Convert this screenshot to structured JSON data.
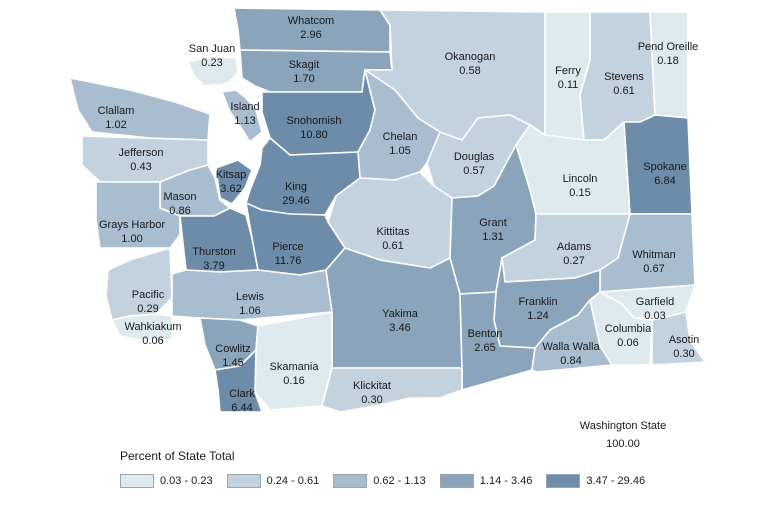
{
  "bins": [
    {
      "label": "0.03 - 0.23",
      "color": "#dfeaef"
    },
    {
      "label": "0.24 - 0.61",
      "color": "#c3d2df"
    },
    {
      "label": "0.62 - 1.13",
      "color": "#a8bdcf"
    },
    {
      "label": "1.14 - 3.46",
      "color": "#8aa4bb"
    },
    {
      "label": "3.47 - 29.46",
      "color": "#6c8ca9"
    }
  ],
  "legend": {
    "title": "Percent of State Total"
  },
  "state_total": {
    "name": "Washington State",
    "value": "100.00"
  },
  "counties": [
    {
      "name": "Whatcom",
      "value": "2.96",
      "bin": 3
    },
    {
      "name": "San Juan",
      "value": "0.23",
      "bin": 0
    },
    {
      "name": "Skagit",
      "value": "1.70",
      "bin": 3
    },
    {
      "name": "Okanogan",
      "value": "0.58",
      "bin": 1
    },
    {
      "name": "Ferry",
      "value": "0.11",
      "bin": 0
    },
    {
      "name": "Stevens",
      "value": "0.61",
      "bin": 1
    },
    {
      "name": "Pend Oreille",
      "value": "0.18",
      "bin": 0
    },
    {
      "name": "Clallam",
      "value": "1.02",
      "bin": 2
    },
    {
      "name": "Island",
      "value": "1.13",
      "bin": 2
    },
    {
      "name": "Snohomish",
      "value": "10.80",
      "bin": 4
    },
    {
      "name": "Chelan",
      "value": "1.05",
      "bin": 2
    },
    {
      "name": "Jefferson",
      "value": "0.43",
      "bin": 1
    },
    {
      "name": "Douglas",
      "value": "0.57",
      "bin": 1
    },
    {
      "name": "Lincoln",
      "value": "0.15",
      "bin": 0
    },
    {
      "name": "Spokane",
      "value": "6.84",
      "bin": 4
    },
    {
      "name": "Kitsap",
      "value": "3.62",
      "bin": 4
    },
    {
      "name": "Mason",
      "value": "0.86",
      "bin": 2
    },
    {
      "name": "King",
      "value": "29.46",
      "bin": 4
    },
    {
      "name": "Grays Harbor",
      "value": "1.00",
      "bin": 2
    },
    {
      "name": "Kittitas",
      "value": "0.61",
      "bin": 1
    },
    {
      "name": "Grant",
      "value": "1.31",
      "bin": 3
    },
    {
      "name": "Thurston",
      "value": "3.79",
      "bin": 4
    },
    {
      "name": "Pierce",
      "value": "11.76",
      "bin": 4
    },
    {
      "name": "Adams",
      "value": "0.27",
      "bin": 1
    },
    {
      "name": "Whitman",
      "value": "0.67",
      "bin": 2
    },
    {
      "name": "Pacific",
      "value": "0.29",
      "bin": 1
    },
    {
      "name": "Lewis",
      "value": "1.06",
      "bin": 2
    },
    {
      "name": "Yakima",
      "value": "3.46",
      "bin": 3
    },
    {
      "name": "Franklin",
      "value": "1.24",
      "bin": 3
    },
    {
      "name": "Garfield",
      "value": "0.03",
      "bin": 0
    },
    {
      "name": "Wahkiakum",
      "value": "0.06",
      "bin": 0
    },
    {
      "name": "Benton",
      "value": "2.65",
      "bin": 3
    },
    {
      "name": "Columbia",
      "value": "0.06",
      "bin": 0
    },
    {
      "name": "Asotin",
      "value": "0.30",
      "bin": 1
    },
    {
      "name": "Cowlitz",
      "value": "1.45",
      "bin": 3
    },
    {
      "name": "Walla Walla",
      "value": "0.84",
      "bin": 2
    },
    {
      "name": "Skamania",
      "value": "0.16",
      "bin": 0
    },
    {
      "name": "Clark",
      "value": "6.44",
      "bin": 4
    },
    {
      "name": "Klickitat",
      "value": "0.30",
      "bin": 1
    }
  ]
}
